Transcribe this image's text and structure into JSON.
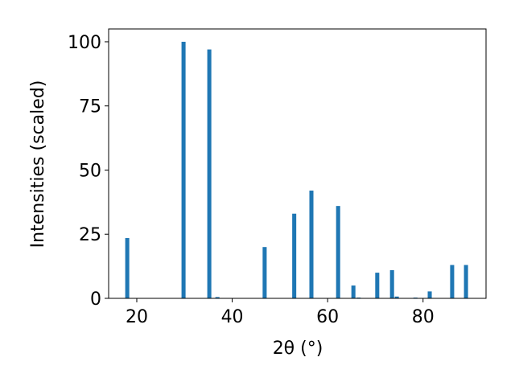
{
  "chart_data": {
    "type": "bar",
    "xlabel": "2θ (°)",
    "ylabel": "Intensities (scaled)",
    "x": [
      18.0,
      29.8,
      35.2,
      36.9,
      46.8,
      53.0,
      56.6,
      62.2,
      65.4,
      66.5,
      70.4,
      73.5,
      74.5,
      78.4,
      81.4,
      86.1,
      89.0
    ],
    "values": [
      23.5,
      100,
      97,
      0.5,
      20,
      33,
      42,
      36,
      5,
      0.3,
      10,
      11,
      0.7,
      0.3,
      2.7,
      13,
      13
    ],
    "color": "#1f77b4",
    "xlim": [
      14.1,
      93.2
    ],
    "ylim": [
      0,
      105
    ],
    "xticks": [
      20,
      40,
      60,
      80
    ],
    "yticks": [
      0,
      25,
      50,
      75,
      100
    ]
  }
}
